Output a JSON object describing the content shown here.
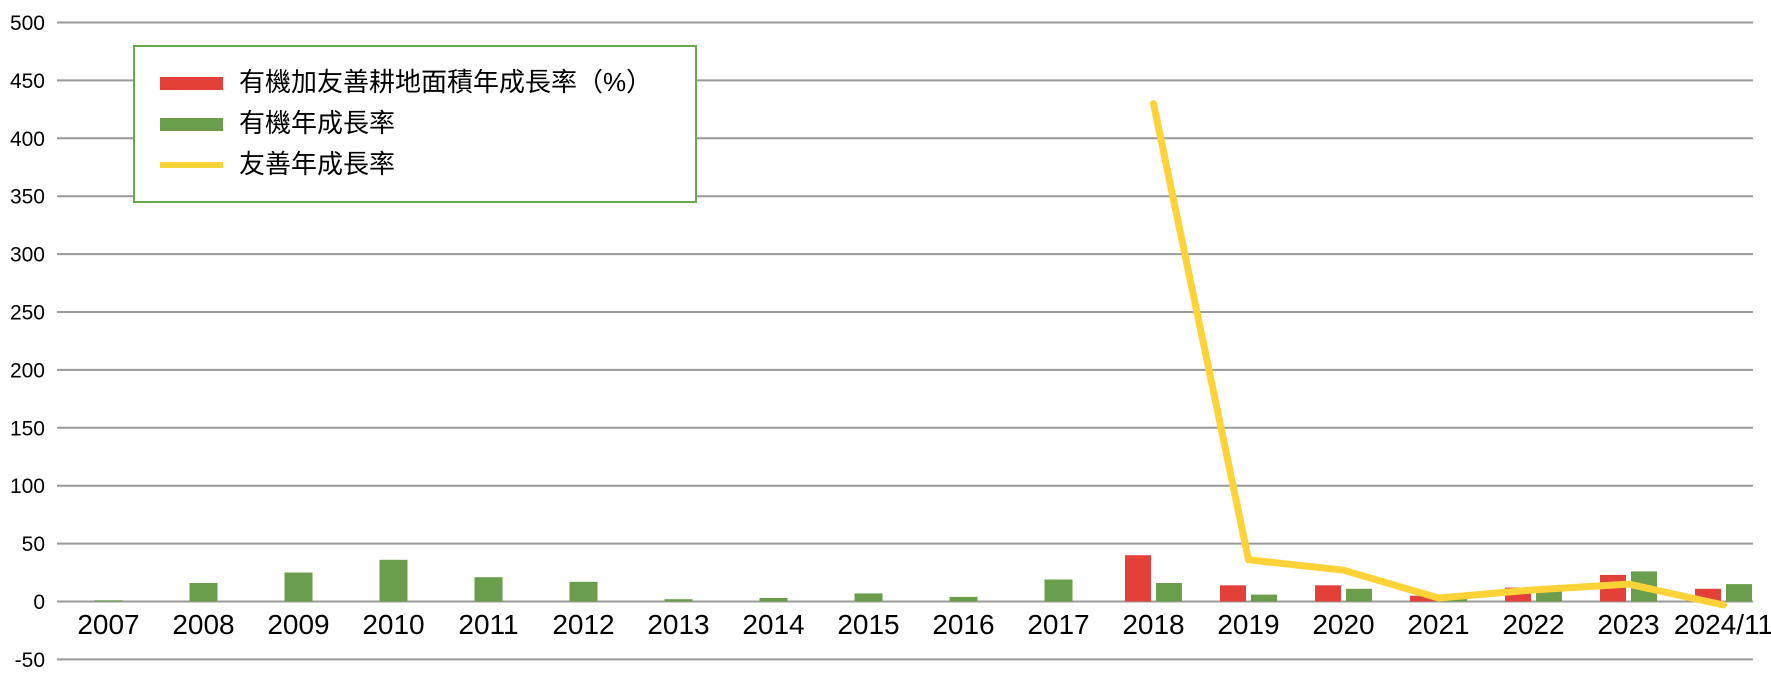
{
  "chart_data": {
    "type": "combo",
    "categories": [
      "2007",
      "2008",
      "2009",
      "2010",
      "2011",
      "2012",
      "2013",
      "2014",
      "2015",
      "2016",
      "2017",
      "2018",
      "2019",
      "2020",
      "2021",
      "2022",
      "2023",
      "2024/11"
    ],
    "series": [
      {
        "name": "有機加友善耕地面積年成長率（%）",
        "type": "bar",
        "color": "#E3403A",
        "values": [
          null,
          null,
          null,
          null,
          null,
          null,
          null,
          null,
          null,
          null,
          null,
          40,
          14,
          14,
          5,
          12,
          23,
          11
        ]
      },
      {
        "name": "有機年成長率",
        "type": "bar",
        "color": "#6A9E4C",
        "values": [
          1,
          16,
          25,
          36,
          21,
          17,
          2,
          3,
          7,
          4,
          19,
          16,
          6,
          11,
          3,
          9,
          26,
          15
        ]
      },
      {
        "name": "友善年成長率",
        "type": "line",
        "color": "#FFD337",
        "values": [
          null,
          null,
          null,
          null,
          null,
          null,
          null,
          null,
          null,
          null,
          null,
          430,
          36,
          27,
          3,
          10,
          15,
          -3
        ]
      }
    ],
    "yaxis": {
      "min": -50,
      "max": 500,
      "step": 50
    },
    "grid": true,
    "legend_position": "top-left"
  },
  "style_colors": {
    "gridline": "#9A9A9A",
    "axis_text": "#000000",
    "legend_border": "#6AA84F",
    "background": "#FFFFFF"
  }
}
